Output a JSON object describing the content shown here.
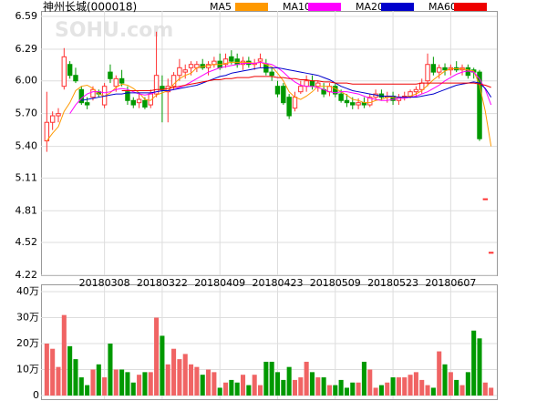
{
  "chart_data": {
    "type": "candlestick",
    "title": "神州长城(000018)",
    "watermark": "SOHU.com",
    "up_color": "#ff3232",
    "down_color": "#009900",
    "categories": [
      null,
      null,
      null,
      null,
      null,
      null,
      null,
      null,
      null,
      null,
      "20180308",
      null,
      null,
      null,
      null,
      null,
      null,
      null,
      null,
      null,
      "20180322",
      null,
      null,
      null,
      null,
      null,
      null,
      null,
      null,
      null,
      "20180409",
      null,
      null,
      null,
      null,
      null,
      null,
      null,
      null,
      null,
      "20180423",
      null,
      null,
      null,
      null,
      null,
      null,
      null,
      null,
      null,
      "20180509",
      null,
      null,
      null,
      null,
      null,
      null,
      null,
      null,
      null,
      "20180523",
      null,
      null,
      null,
      null,
      null,
      null,
      null,
      null,
      null,
      "20180607",
      null,
      null,
      null,
      null,
      null,
      null,
      null
    ],
    "open": [
      5.45,
      5.62,
      5.68,
      5.95,
      6.15,
      6.05,
      5.92,
      5.8,
      5.85,
      5.9,
      5.78,
      6.08,
      5.95,
      6.02,
      5.9,
      5.82,
      5.8,
      5.82,
      5.78,
      5.88,
      5.95,
      5.9,
      5.95,
      6.05,
      6.08,
      6.12,
      6.12,
      6.15,
      6.12,
      6.15,
      6.18,
      6.15,
      6.22,
      6.2,
      6.15,
      6.18,
      6.15,
      6.18,
      6.15,
      6.08,
      5.95,
      5.95,
      5.85,
      5.75,
      5.9,
      5.95,
      6.0,
      5.95,
      5.92,
      5.9,
      5.95,
      5.88,
      5.82,
      5.8,
      5.78,
      5.8,
      5.78,
      5.85,
      5.88,
      5.85,
      5.86,
      5.82,
      5.85,
      5.86,
      5.9,
      5.92,
      6.0,
      6.15,
      6.08,
      6.12,
      6.1,
      6.12,
      6.1,
      6.12,
      6.1,
      6.08,
      4.92,
      4.43
    ],
    "high": [
      5.9,
      5.72,
      5.75,
      6.3,
      6.18,
      6.12,
      5.95,
      5.85,
      5.95,
      5.92,
      5.98,
      6.15,
      6.05,
      6.1,
      5.95,
      5.85,
      5.88,
      5.85,
      5.92,
      6.45,
      6.05,
      6.02,
      6.08,
      6.2,
      6.15,
      6.18,
      6.18,
      6.2,
      6.18,
      6.22,
      6.25,
      6.25,
      6.28,
      6.25,
      6.22,
      6.22,
      6.2,
      6.25,
      6.2,
      6.12,
      6.0,
      5.98,
      5.88,
      5.9,
      6.0,
      6.05,
      6.05,
      6.0,
      5.98,
      5.98,
      5.98,
      5.92,
      5.88,
      5.85,
      5.84,
      5.85,
      5.88,
      5.92,
      5.92,
      5.9,
      5.9,
      5.88,
      5.9,
      5.92,
      5.95,
      6.02,
      6.25,
      6.22,
      6.15,
      6.16,
      6.15,
      6.18,
      6.15,
      6.15,
      6.12,
      6.1,
      4.92,
      4.43
    ],
    "low": [
      5.35,
      5.55,
      5.62,
      5.92,
      6.02,
      5.98,
      5.78,
      5.74,
      5.82,
      5.85,
      5.75,
      5.98,
      5.9,
      5.95,
      5.78,
      5.75,
      5.75,
      5.74,
      5.75,
      5.85,
      5.62,
      5.62,
      5.92,
      6.0,
      6.02,
      6.05,
      6.08,
      6.1,
      6.05,
      6.12,
      6.1,
      6.12,
      6.15,
      6.12,
      6.1,
      6.12,
      6.1,
      6.12,
      6.05,
      6.0,
      5.85,
      5.78,
      5.65,
      5.72,
      5.88,
      5.9,
      5.92,
      5.9,
      5.85,
      5.86,
      5.85,
      5.8,
      5.76,
      5.74,
      5.74,
      5.75,
      5.76,
      5.82,
      5.82,
      5.8,
      5.78,
      5.78,
      5.82,
      5.84,
      5.85,
      5.88,
      5.95,
      6.05,
      6.02,
      6.05,
      6.05,
      6.08,
      6.05,
      6.02,
      6.02,
      5.45,
      4.92,
      4.43
    ],
    "close": [
      5.62,
      5.68,
      5.7,
      6.22,
      6.05,
      6.0,
      5.8,
      5.78,
      5.92,
      5.88,
      5.95,
      6.02,
      6.02,
      5.98,
      5.82,
      5.78,
      5.83,
      5.76,
      5.88,
      6.05,
      5.92,
      5.95,
      6.05,
      6.12,
      6.1,
      6.15,
      6.15,
      6.12,
      6.15,
      6.18,
      6.12,
      6.2,
      6.18,
      6.15,
      6.18,
      6.15,
      6.16,
      6.2,
      6.08,
      6.05,
      5.88,
      5.8,
      5.68,
      5.85,
      5.95,
      6.0,
      5.95,
      5.98,
      5.88,
      5.95,
      5.88,
      5.82,
      5.8,
      5.78,
      5.8,
      5.78,
      5.85,
      5.88,
      5.85,
      5.86,
      5.82,
      5.85,
      5.86,
      5.9,
      5.92,
      5.98,
      6.15,
      6.08,
      6.12,
      6.1,
      6.12,
      6.1,
      6.12,
      6.05,
      6.08,
      5.47,
      4.92,
      4.43
    ],
    "ylim": [
      4.22,
      6.59
    ],
    "yticks": [
      {
        "value": 6.59,
        "label": "6.59"
      },
      {
        "value": 6.29,
        "label": "6.29"
      },
      {
        "value": 6.0,
        "label": "6.00"
      },
      {
        "value": 5.7,
        "label": "5.70"
      },
      {
        "value": 5.4,
        "label": "5.40"
      },
      {
        "value": 5.11,
        "label": "5.11"
      },
      {
        "value": 4.81,
        "label": "4.81"
      },
      {
        "value": 4.52,
        "label": "4.52"
      },
      {
        "value": 4.22,
        "label": "4.22"
      }
    ],
    "series": [
      {
        "name": "MA5",
        "color": "#ff9900",
        "values": [
          5.45,
          5.52,
          5.58,
          5.72,
          5.8,
          5.91,
          5.95,
          5.96,
          5.93,
          5.88,
          5.86,
          5.89,
          5.94,
          5.97,
          5.96,
          5.93,
          5.89,
          5.83,
          5.82,
          5.87,
          5.89,
          5.91,
          5.97,
          6.02,
          6.05,
          6.07,
          6.12,
          6.13,
          6.14,
          6.15,
          6.15,
          6.16,
          6.17,
          6.17,
          6.17,
          6.17,
          6.16,
          6.17,
          6.15,
          6.13,
          6.07,
          6.0,
          5.9,
          5.85,
          5.83,
          5.86,
          5.9,
          5.95,
          5.95,
          5.95,
          5.93,
          5.9,
          5.87,
          5.83,
          5.82,
          5.8,
          5.8,
          5.82,
          5.83,
          5.85,
          5.85,
          5.85,
          5.85,
          5.86,
          5.88,
          5.91,
          5.96,
          6.01,
          6.05,
          6.09,
          6.11,
          6.11,
          6.11,
          6.1,
          6.09,
          5.96,
          5.72,
          5.4
        ]
      },
      {
        "name": "MA10",
        "color": "#ff00ff",
        "values": [
          null,
          null,
          null,
          null,
          5.7,
          5.78,
          5.84,
          5.88,
          5.9,
          5.9,
          5.89,
          5.9,
          5.92,
          5.93,
          5.92,
          5.9,
          5.88,
          5.87,
          5.88,
          5.9,
          5.91,
          5.91,
          5.92,
          5.94,
          5.96,
          5.99,
          6.02,
          6.05,
          6.08,
          6.1,
          6.12,
          6.13,
          6.14,
          6.15,
          6.16,
          6.16,
          6.16,
          6.17,
          6.16,
          6.15,
          6.12,
          6.08,
          6.03,
          5.99,
          5.96,
          5.95,
          5.95,
          5.94,
          5.92,
          5.9,
          5.89,
          5.9,
          5.9,
          5.89,
          5.88,
          5.86,
          5.84,
          5.83,
          5.82,
          5.82,
          5.83,
          5.84,
          5.84,
          5.85,
          5.86,
          5.88,
          5.9,
          5.93,
          5.96,
          6.0,
          6.03,
          6.06,
          6.08,
          6.09,
          6.08,
          6.02,
          5.92,
          5.78
        ]
      },
      {
        "name": "MA20",
        "color": "#0000cc",
        "values": [
          null,
          null,
          null,
          null,
          null,
          null,
          5.82,
          5.83,
          5.84,
          5.85,
          5.86,
          5.87,
          5.88,
          5.88,
          5.89,
          5.89,
          5.89,
          5.89,
          5.89,
          5.9,
          5.91,
          5.91,
          5.92,
          5.93,
          5.94,
          5.95,
          5.96,
          5.98,
          6.0,
          6.02,
          6.04,
          6.05,
          6.07,
          6.08,
          6.09,
          6.1,
          6.11,
          6.12,
          6.12,
          6.12,
          6.12,
          6.11,
          6.1,
          6.09,
          6.08,
          6.07,
          6.06,
          6.05,
          6.03,
          6.01,
          5.98,
          5.95,
          5.93,
          5.91,
          5.9,
          5.89,
          5.88,
          5.87,
          5.86,
          5.86,
          5.86,
          5.85,
          5.85,
          5.85,
          5.85,
          5.86,
          5.87,
          5.88,
          5.9,
          5.92,
          5.94,
          5.96,
          5.97,
          5.98,
          5.99,
          5.98,
          5.93,
          5.85
        ]
      },
      {
        "name": "MA60",
        "color": "#ee0000",
        "values": [
          null,
          null,
          null,
          null,
          null,
          null,
          null,
          null,
          null,
          null,
          null,
          null,
          null,
          5.91,
          5.91,
          5.91,
          5.91,
          5.91,
          5.91,
          5.92,
          5.92,
          5.93,
          5.94,
          5.95,
          5.96,
          5.97,
          5.98,
          5.99,
          6.0,
          6.01,
          6.01,
          6.02,
          6.02,
          6.03,
          6.03,
          6.03,
          6.04,
          6.04,
          6.04,
          6.04,
          6.03,
          6.03,
          6.02,
          6.02,
          6.01,
          6.01,
          6.0,
          6.0,
          5.99,
          5.99,
          5.98,
          5.98,
          5.98,
          5.97,
          5.97,
          5.97,
          5.97,
          5.97,
          5.97,
          5.97,
          5.97,
          5.97,
          5.97,
          5.97,
          5.97,
          5.98,
          5.98,
          5.98,
          5.98,
          5.98,
          5.98,
          5.98,
          5.98,
          5.98,
          5.98,
          5.97,
          5.96,
          5.94
        ]
      }
    ],
    "volume": {
      "values": [
        20,
        18,
        11,
        31,
        19,
        14,
        7,
        4,
        10,
        12,
        7,
        20,
        10,
        10,
        9,
        5,
        8,
        9,
        9,
        30,
        23,
        12,
        18,
        14,
        16,
        12,
        11,
        8,
        10,
        9,
        3,
        5,
        6,
        5,
        8,
        4,
        8,
        4,
        13,
        13,
        9,
        6,
        11,
        6,
        7,
        13,
        9,
        7,
        7,
        4,
        4,
        6,
        3,
        5,
        5,
        13,
        10,
        3,
        4,
        5,
        7,
        7,
        7,
        8,
        9,
        6,
        4,
        3,
        17,
        12,
        9,
        6,
        4,
        9,
        25,
        22,
        5,
        3
      ],
      "ylim": [
        0,
        40
      ],
      "yticks": [
        0,
        {
          "value": 10,
          "label": "10万"
        },
        {
          "value": 20,
          "label": "20万"
        },
        {
          "value": 30,
          "label": "30万"
        },
        {
          "value": 40,
          "label": "40万"
        }
      ]
    }
  }
}
